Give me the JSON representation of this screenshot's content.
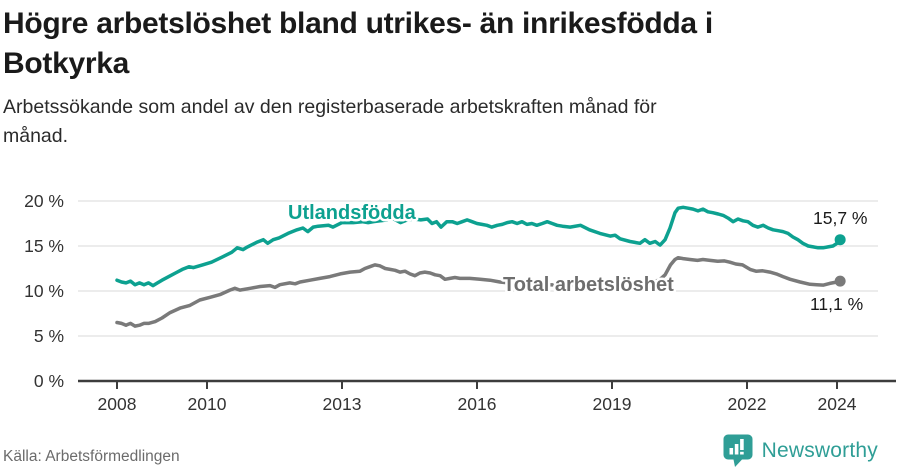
{
  "header": {
    "title_lines": [
      "Högre arbetslöshet bland utrikes- än inrikesfödda i",
      "Botkyrka"
    ],
    "subtitle_lines": [
      "Arbetssökande som andel av den registerbaserade arbetskraften månad för",
      "månad."
    ]
  },
  "footer": {
    "source": "Källa: Arbetsförmedlingen",
    "brand": "Newsworthy"
  },
  "colors": {
    "accent_teal": "#0da190",
    "line_gray": "#7a7a7a",
    "label_gray": "#6e6e6e",
    "grid": "#d9d9d9",
    "axis": "#3d3d3d",
    "axis_text": "#333333",
    "end_label_text": "#1a1a1a",
    "logo_teal": "#2f9e96"
  },
  "chart_data": {
    "type": "line",
    "title": "Högre arbetslöshet bland utrikes- än inrikesfödda i Botkyrka",
    "subtitle": "Arbetssökande som andel av den registerbaserade arbetskraften månad för månad.",
    "x_unit": "year, monthly observations",
    "xlim": [
      2007.15,
      2025.3
    ],
    "ylim": [
      0,
      20
    ],
    "yticks": [
      0,
      5,
      10,
      15,
      20
    ],
    "ytick_labels": [
      "0 %",
      "5 %",
      "10 %",
      "15 %",
      "20 %"
    ],
    "xticks": [
      2008,
      2010,
      2013,
      2016,
      2019,
      2022,
      2024
    ],
    "grid": "horizontal",
    "legend": "inline-labels",
    "series": [
      {
        "name": "Utlandsfödda",
        "color": "#0da190",
        "end_label": "15,7 %",
        "end_value": 15.7,
        "points": [
          [
            2008.0,
            11.2
          ],
          [
            2008.1,
            11.0
          ],
          [
            2008.2,
            10.9
          ],
          [
            2008.3,
            11.1
          ],
          [
            2008.4,
            10.7
          ],
          [
            2008.5,
            10.9
          ],
          [
            2008.6,
            10.7
          ],
          [
            2008.7,
            10.9
          ],
          [
            2008.8,
            10.6
          ],
          [
            2008.9,
            10.9
          ],
          [
            2009.0,
            11.2
          ],
          [
            2009.15,
            11.6
          ],
          [
            2009.3,
            12.0
          ],
          [
            2009.45,
            12.4
          ],
          [
            2009.6,
            12.7
          ],
          [
            2009.7,
            12.6
          ],
          [
            2009.9,
            12.9
          ],
          [
            2010.1,
            13.2
          ],
          [
            2010.35,
            13.8
          ],
          [
            2010.55,
            14.3
          ],
          [
            2010.67,
            14.8
          ],
          [
            2010.8,
            14.6
          ],
          [
            2010.9,
            14.9
          ],
          [
            2011.1,
            15.4
          ],
          [
            2011.25,
            15.7
          ],
          [
            2011.35,
            15.3
          ],
          [
            2011.47,
            15.7
          ],
          [
            2011.6,
            15.9
          ],
          [
            2011.8,
            16.4
          ],
          [
            2012.0,
            16.8
          ],
          [
            2012.13,
            17.0
          ],
          [
            2012.24,
            16.6
          ],
          [
            2012.36,
            17.1
          ],
          [
            2012.47,
            17.2
          ],
          [
            2012.7,
            17.3
          ],
          [
            2012.8,
            17.1
          ],
          [
            2013.0,
            17.6
          ],
          [
            2013.25,
            17.6
          ],
          [
            2013.45,
            17.7
          ],
          [
            2013.58,
            17.6
          ],
          [
            2013.7,
            17.7
          ],
          [
            2013.85,
            17.8
          ],
          [
            2014.0,
            17.9
          ],
          [
            2014.15,
            18.0
          ],
          [
            2014.3,
            17.6
          ],
          [
            2014.45,
            17.9
          ],
          [
            2014.6,
            18.0
          ],
          [
            2014.75,
            17.9
          ],
          [
            2014.9,
            18.0
          ],
          [
            2015.0,
            17.5
          ],
          [
            2015.1,
            17.7
          ],
          [
            2015.2,
            17.1
          ],
          [
            2015.33,
            17.7
          ],
          [
            2015.45,
            17.7
          ],
          [
            2015.56,
            17.5
          ],
          [
            2015.67,
            17.7
          ],
          [
            2015.78,
            17.9
          ],
          [
            2015.89,
            17.7
          ],
          [
            2016.0,
            17.5
          ],
          [
            2016.11,
            17.4
          ],
          [
            2016.22,
            17.3
          ],
          [
            2016.33,
            17.1
          ],
          [
            2016.45,
            17.3
          ],
          [
            2016.56,
            17.4
          ],
          [
            2016.67,
            17.6
          ],
          [
            2016.78,
            17.7
          ],
          [
            2016.89,
            17.5
          ],
          [
            2017.0,
            17.7
          ],
          [
            2017.11,
            17.4
          ],
          [
            2017.22,
            17.5
          ],
          [
            2017.33,
            17.3
          ],
          [
            2017.45,
            17.5
          ],
          [
            2017.56,
            17.7
          ],
          [
            2017.67,
            17.5
          ],
          [
            2017.78,
            17.3
          ],
          [
            2017.9,
            17.2
          ],
          [
            2018.07,
            17.1
          ],
          [
            2018.3,
            17.3
          ],
          [
            2018.5,
            16.8
          ],
          [
            2018.73,
            16.4
          ],
          [
            2018.96,
            16.1
          ],
          [
            2019.07,
            16.2
          ],
          [
            2019.18,
            15.8
          ],
          [
            2019.4,
            15.5
          ],
          [
            2019.62,
            15.3
          ],
          [
            2019.73,
            15.7
          ],
          [
            2019.84,
            15.3
          ],
          [
            2019.96,
            15.5
          ],
          [
            2020.07,
            15.1
          ],
          [
            2020.18,
            15.7
          ],
          [
            2020.29,
            17.0
          ],
          [
            2020.4,
            18.7
          ],
          [
            2020.47,
            19.2
          ],
          [
            2020.58,
            19.3
          ],
          [
            2020.69,
            19.2
          ],
          [
            2020.8,
            19.1
          ],
          [
            2020.91,
            18.9
          ],
          [
            2021.02,
            19.1
          ],
          [
            2021.13,
            18.8
          ],
          [
            2021.24,
            18.7
          ],
          [
            2021.36,
            18.55
          ],
          [
            2021.47,
            18.4
          ],
          [
            2021.58,
            18.1
          ],
          [
            2021.69,
            17.7
          ],
          [
            2021.8,
            18.0
          ],
          [
            2021.91,
            17.8
          ],
          [
            2022.02,
            17.7
          ],
          [
            2022.13,
            17.3
          ],
          [
            2022.24,
            17.1
          ],
          [
            2022.36,
            17.3
          ],
          [
            2022.47,
            17.0
          ],
          [
            2022.58,
            16.8
          ],
          [
            2022.69,
            16.7
          ],
          [
            2022.8,
            16.6
          ],
          [
            2022.91,
            16.4
          ],
          [
            2023.02,
            16.0
          ],
          [
            2023.13,
            15.7
          ],
          [
            2023.24,
            15.3
          ],
          [
            2023.36,
            15.0
          ],
          [
            2023.47,
            14.9
          ],
          [
            2023.58,
            14.8
          ],
          [
            2023.69,
            14.8
          ],
          [
            2023.8,
            14.9
          ],
          [
            2023.91,
            15.0
          ],
          [
            2024.0,
            15.3
          ],
          [
            2024.07,
            15.7
          ]
        ]
      },
      {
        "name": "Total arbetslöshet",
        "color": "#7a7a7a",
        "end_label": "11,1 %",
        "end_value": 11.1,
        "points": [
          [
            2008.0,
            6.5
          ],
          [
            2008.1,
            6.4
          ],
          [
            2008.2,
            6.2
          ],
          [
            2008.3,
            6.4
          ],
          [
            2008.4,
            6.1
          ],
          [
            2008.5,
            6.2
          ],
          [
            2008.6,
            6.4
          ],
          [
            2008.7,
            6.4
          ],
          [
            2008.85,
            6.6
          ],
          [
            2009.0,
            7.0
          ],
          [
            2009.18,
            7.6
          ],
          [
            2009.4,
            8.1
          ],
          [
            2009.62,
            8.4
          ],
          [
            2009.84,
            9.0
          ],
          [
            2010.07,
            9.3
          ],
          [
            2010.29,
            9.6
          ],
          [
            2010.51,
            10.1
          ],
          [
            2010.62,
            10.3
          ],
          [
            2010.73,
            10.1
          ],
          [
            2010.96,
            10.3
          ],
          [
            2011.18,
            10.5
          ],
          [
            2011.4,
            10.6
          ],
          [
            2011.51,
            10.4
          ],
          [
            2011.62,
            10.7
          ],
          [
            2011.84,
            10.9
          ],
          [
            2011.96,
            10.8
          ],
          [
            2012.07,
            11.0
          ],
          [
            2012.29,
            11.2
          ],
          [
            2012.51,
            11.4
          ],
          [
            2012.73,
            11.6
          ],
          [
            2012.96,
            11.9
          ],
          [
            2013.18,
            12.1
          ],
          [
            2013.4,
            12.2
          ],
          [
            2013.51,
            12.5
          ],
          [
            2013.62,
            12.7
          ],
          [
            2013.73,
            12.9
          ],
          [
            2013.84,
            12.8
          ],
          [
            2013.96,
            12.5
          ],
          [
            2014.07,
            12.4
          ],
          [
            2014.18,
            12.3
          ],
          [
            2014.29,
            12.1
          ],
          [
            2014.4,
            12.2
          ],
          [
            2014.51,
            11.9
          ],
          [
            2014.62,
            11.7
          ],
          [
            2014.73,
            12.0
          ],
          [
            2014.84,
            12.1
          ],
          [
            2014.96,
            12.0
          ],
          [
            2015.07,
            11.8
          ],
          [
            2015.18,
            11.7
          ],
          [
            2015.29,
            11.3
          ],
          [
            2015.4,
            11.4
          ],
          [
            2015.51,
            11.5
          ],
          [
            2015.62,
            11.4
          ],
          [
            2015.84,
            11.4
          ],
          [
            2016.07,
            11.3
          ],
          [
            2016.29,
            11.2
          ],
          [
            2016.51,
            11.0
          ],
          [
            2016.7,
            10.9
          ],
          [
            2016.9,
            10.85
          ],
          [
            2017.1,
            10.8
          ],
          [
            2017.35,
            10.75
          ],
          [
            2017.6,
            10.7
          ],
          [
            2017.85,
            10.65
          ],
          [
            2018.1,
            10.6
          ],
          [
            2018.35,
            10.6
          ],
          [
            2018.6,
            10.65
          ],
          [
            2018.85,
            10.7
          ],
          [
            2019.1,
            10.75
          ],
          [
            2019.35,
            10.8
          ],
          [
            2019.6,
            10.9
          ],
          [
            2019.85,
            11.0
          ],
          [
            2020.05,
            11.2
          ],
          [
            2020.18,
            11.8
          ],
          [
            2020.3,
            12.9
          ],
          [
            2020.4,
            13.5
          ],
          [
            2020.47,
            13.7
          ],
          [
            2020.58,
            13.6
          ],
          [
            2020.73,
            13.5
          ],
          [
            2020.9,
            13.4
          ],
          [
            2021.02,
            13.5
          ],
          [
            2021.18,
            13.4
          ],
          [
            2021.35,
            13.3
          ],
          [
            2021.5,
            13.35
          ],
          [
            2021.62,
            13.2
          ],
          [
            2021.75,
            13.0
          ],
          [
            2021.9,
            12.9
          ],
          [
            2022.07,
            12.4
          ],
          [
            2022.2,
            12.2
          ],
          [
            2022.35,
            12.25
          ],
          [
            2022.51,
            12.1
          ],
          [
            2022.65,
            11.9
          ],
          [
            2022.8,
            11.6
          ],
          [
            2022.96,
            11.3
          ],
          [
            2023.18,
            11.0
          ],
          [
            2023.4,
            10.75
          ],
          [
            2023.55,
            10.7
          ],
          [
            2023.7,
            10.65
          ],
          [
            2023.84,
            10.85
          ],
          [
            2024.0,
            11.0
          ],
          [
            2024.07,
            11.1
          ]
        ]
      }
    ]
  }
}
